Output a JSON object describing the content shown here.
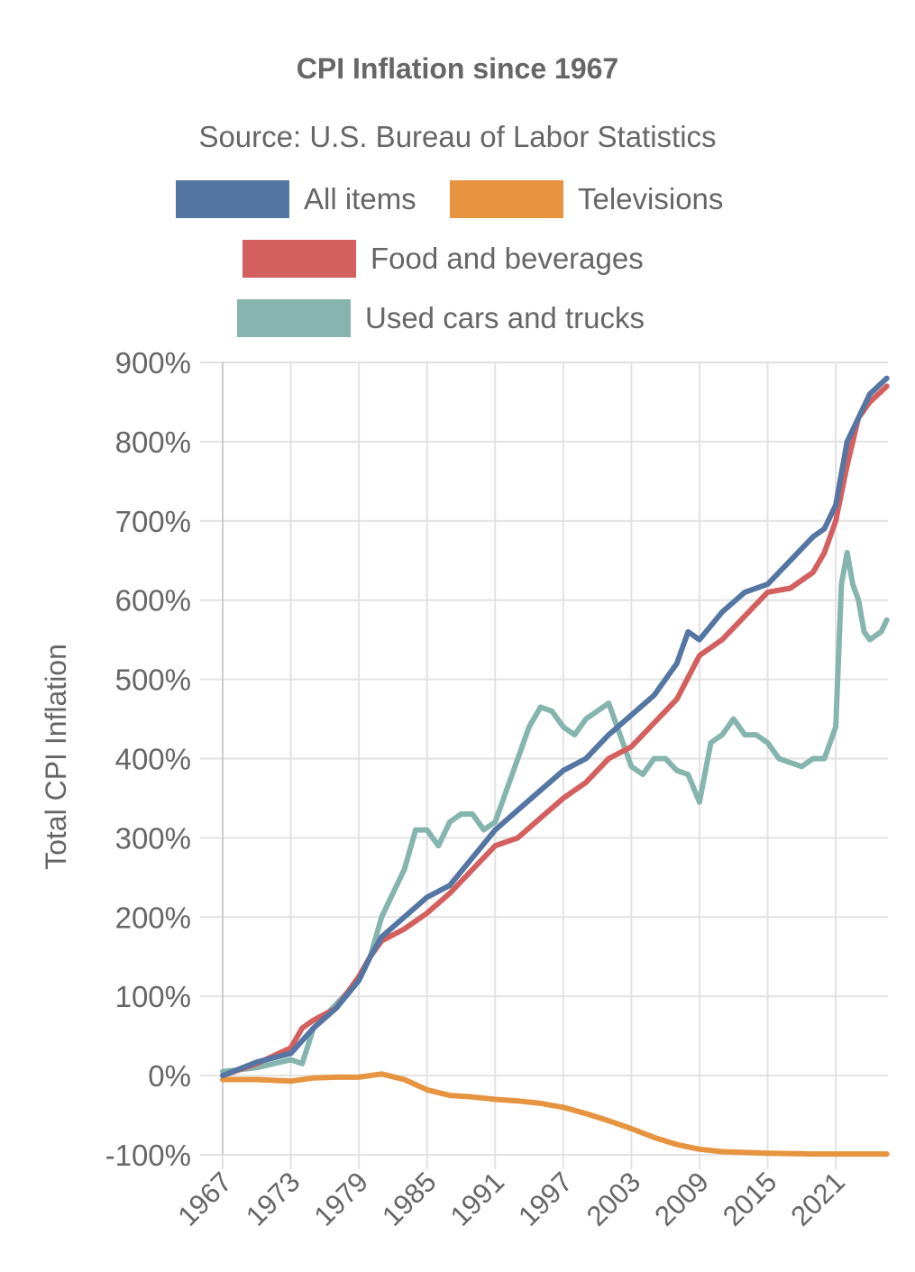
{
  "chart_data": {
    "type": "line",
    "title": "CPI Inflation since 1967",
    "subtitle": "Source: U.S. Bureau of Labor Statistics",
    "xlabel": "",
    "ylabel": "Total CPI Inflation",
    "xlim": [
      1967,
      2025.6
    ],
    "ylim": [
      -100,
      900
    ],
    "x_ticks": [
      "1967",
      "1973",
      "1979",
      "1985",
      "1991",
      "1997",
      "2003",
      "2009",
      "2015",
      "2021"
    ],
    "y_ticks": [
      "-100%",
      "0%",
      "100%",
      "200%",
      "300%",
      "400%",
      "500%",
      "600%",
      "700%",
      "800%",
      "900%"
    ],
    "grid": true,
    "legend_position": "top",
    "series": [
      {
        "name": "All items",
        "color": "#5576a3",
        "points": [
          [
            1967,
            0
          ],
          [
            1970,
            17
          ],
          [
            1973,
            28
          ],
          [
            1975,
            60
          ],
          [
            1977,
            85
          ],
          [
            1979,
            120
          ],
          [
            1980,
            150
          ],
          [
            1981,
            175
          ],
          [
            1983,
            200
          ],
          [
            1985,
            225
          ],
          [
            1987,
            240
          ],
          [
            1989,
            275
          ],
          [
            1991,
            310
          ],
          [
            1993,
            335
          ],
          [
            1995,
            360
          ],
          [
            1997,
            385
          ],
          [
            1999,
            400
          ],
          [
            2001,
            430
          ],
          [
            2003,
            455
          ],
          [
            2005,
            480
          ],
          [
            2007,
            520
          ],
          [
            2008,
            560
          ],
          [
            2009,
            550
          ],
          [
            2011,
            585
          ],
          [
            2013,
            610
          ],
          [
            2015,
            620
          ],
          [
            2017,
            650
          ],
          [
            2019,
            680
          ],
          [
            2020,
            690
          ],
          [
            2021,
            720
          ],
          [
            2022,
            800
          ],
          [
            2023,
            830
          ],
          [
            2024,
            860
          ],
          [
            2025.5,
            880
          ]
        ]
      },
      {
        "name": "Televisions",
        "color": "#e69440",
        "points": [
          [
            1967,
            -5
          ],
          [
            1970,
            -5
          ],
          [
            1973,
            -7
          ],
          [
            1975,
            -3
          ],
          [
            1977,
            -2
          ],
          [
            1979,
            -2
          ],
          [
            1981,
            2
          ],
          [
            1983,
            -5
          ],
          [
            1985,
            -18
          ],
          [
            1987,
            -25
          ],
          [
            1989,
            -27
          ],
          [
            1991,
            -30
          ],
          [
            1993,
            -32
          ],
          [
            1995,
            -35
          ],
          [
            1997,
            -40
          ],
          [
            1999,
            -48
          ],
          [
            2001,
            -57
          ],
          [
            2003,
            -67
          ],
          [
            2005,
            -78
          ],
          [
            2007,
            -87
          ],
          [
            2009,
            -93
          ],
          [
            2011,
            -96
          ],
          [
            2013,
            -97
          ],
          [
            2015,
            -98
          ],
          [
            2019,
            -99
          ],
          [
            2025.5,
            -99
          ]
        ]
      },
      {
        "name": "Food and beverages",
        "color": "#d35f5f",
        "points": [
          [
            1967,
            0
          ],
          [
            1970,
            15
          ],
          [
            1973,
            35
          ],
          [
            1974,
            60
          ],
          [
            1975,
            70
          ],
          [
            1977,
            85
          ],
          [
            1979,
            125
          ],
          [
            1980,
            150
          ],
          [
            1981,
            170
          ],
          [
            1983,
            185
          ],
          [
            1985,
            205
          ],
          [
            1987,
            230
          ],
          [
            1989,
            260
          ],
          [
            1991,
            290
          ],
          [
            1993,
            300
          ],
          [
            1995,
            325
          ],
          [
            1997,
            350
          ],
          [
            1999,
            370
          ],
          [
            2001,
            400
          ],
          [
            2003,
            415
          ],
          [
            2005,
            445
          ],
          [
            2007,
            475
          ],
          [
            2009,
            530
          ],
          [
            2011,
            550
          ],
          [
            2013,
            580
          ],
          [
            2015,
            610
          ],
          [
            2017,
            615
          ],
          [
            2019,
            635
          ],
          [
            2020,
            660
          ],
          [
            2021,
            700
          ],
          [
            2022,
            770
          ],
          [
            2023,
            830
          ],
          [
            2024,
            850
          ],
          [
            2025.5,
            870
          ]
        ]
      },
      {
        "name": "Used cars and trucks",
        "color": "#85b5ae",
        "points": [
          [
            1967,
            5
          ],
          [
            1970,
            10
          ],
          [
            1973,
            20
          ],
          [
            1974,
            15
          ],
          [
            1975,
            60
          ],
          [
            1977,
            90
          ],
          [
            1979,
            120
          ],
          [
            1980,
            150
          ],
          [
            1981,
            200
          ],
          [
            1983,
            260
          ],
          [
            1984,
            310
          ],
          [
            1985,
            310
          ],
          [
            1986,
            290
          ],
          [
            1987,
            320
          ],
          [
            1988,
            330
          ],
          [
            1989,
            330
          ],
          [
            1990,
            310
          ],
          [
            1991,
            320
          ],
          [
            1992,
            360
          ],
          [
            1993,
            400
          ],
          [
            1994,
            440
          ],
          [
            1995,
            465
          ],
          [
            1996,
            460
          ],
          [
            1997,
            440
          ],
          [
            1998,
            430
          ],
          [
            1999,
            450
          ],
          [
            2000,
            460
          ],
          [
            2001,
            470
          ],
          [
            2002,
            430
          ],
          [
            2003,
            390
          ],
          [
            2004,
            380
          ],
          [
            2005,
            400
          ],
          [
            2006,
            400
          ],
          [
            2007,
            385
          ],
          [
            2008,
            380
          ],
          [
            2009,
            345
          ],
          [
            2010,
            420
          ],
          [
            2011,
            430
          ],
          [
            2012,
            450
          ],
          [
            2013,
            430
          ],
          [
            2014,
            430
          ],
          [
            2015,
            420
          ],
          [
            2016,
            400
          ],
          [
            2017,
            395
          ],
          [
            2018,
            390
          ],
          [
            2019,
            400
          ],
          [
            2020,
            400
          ],
          [
            2021,
            440
          ],
          [
            2021.5,
            620
          ],
          [
            2022,
            660
          ],
          [
            2022.5,
            620
          ],
          [
            2023,
            600
          ],
          [
            2023.5,
            560
          ],
          [
            2024,
            550
          ],
          [
            2025,
            560
          ],
          [
            2025.5,
            575
          ]
        ]
      }
    ]
  }
}
